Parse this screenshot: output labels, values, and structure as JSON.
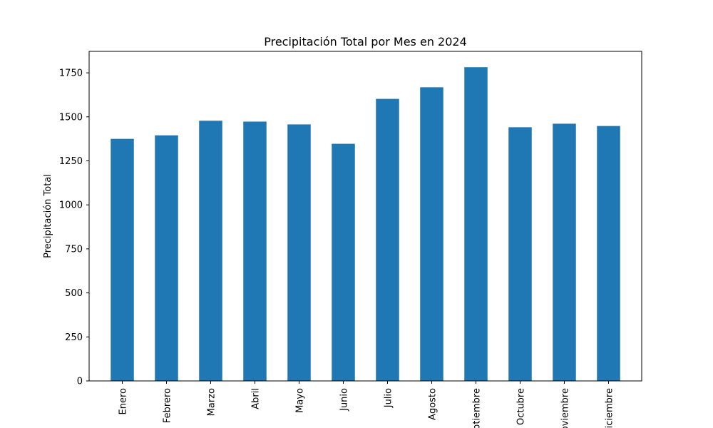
{
  "chart_data": {
    "type": "bar",
    "title": "Precipitación Total por Mes en 2024",
    "xlabel": "",
    "ylabel": "Precipitación Total",
    "categories": [
      "Enero",
      "Febrero",
      "Marzo",
      "Abril",
      "Mayo",
      "Junio",
      "Julio",
      "Agosto",
      "Septiembre",
      "Octubre",
      "Noviembre",
      "Diciembre"
    ],
    "values": [
      1375,
      1395,
      1478,
      1473,
      1457,
      1347,
      1602,
      1668,
      1782,
      1441,
      1461,
      1448
    ],
    "yticks": [
      0,
      250,
      500,
      750,
      1000,
      1250,
      1500,
      1750
    ],
    "ylim": [
      0,
      1872
    ],
    "bar_color": "#1f77b4",
    "grid": false,
    "legend": "none"
  }
}
